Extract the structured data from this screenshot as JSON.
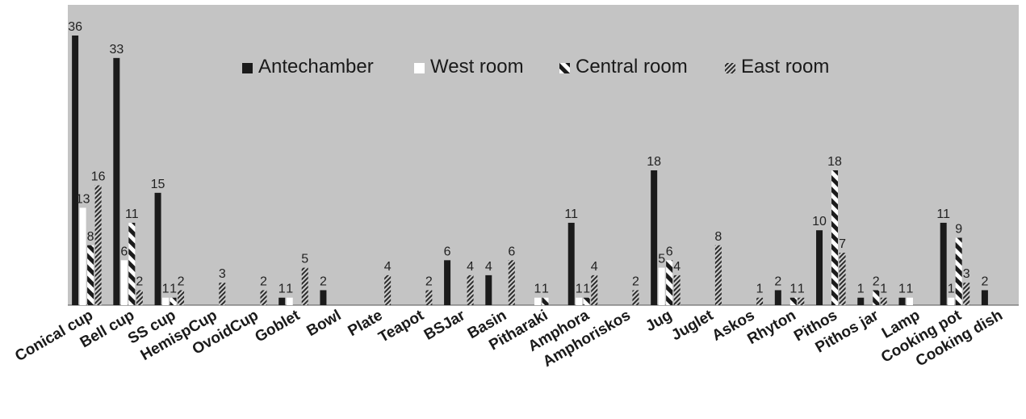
{
  "chart_data": {
    "type": "bar",
    "categories": [
      "Conical cup",
      "Bell cup",
      "SS cup",
      "HemispCup",
      "OvoidCup",
      "Goblet",
      "Bowl",
      "Plate",
      "Teapot",
      "BSJar",
      "Basin",
      "Pitharaki",
      "Amphora",
      "Amphoriskos",
      "Jug",
      "Juglet",
      "Askos",
      "Rhyton",
      "Pithos",
      "Pithos jar",
      "Lamp",
      "Cooking pot",
      "Cooking dish"
    ],
    "series": [
      {
        "name": "Antechamber",
        "values": [
          36,
          33,
          15,
          null,
          null,
          1,
          2,
          null,
          null,
          6,
          4,
          null,
          11,
          null,
          18,
          null,
          null,
          2,
          10,
          1,
          1,
          11,
          2
        ]
      },
      {
        "name": "West room",
        "values": [
          13,
          6,
          1,
          null,
          null,
          1,
          null,
          null,
          null,
          null,
          null,
          1,
          1,
          null,
          5,
          null,
          null,
          null,
          null,
          null,
          1,
          1,
          null
        ]
      },
      {
        "name": "Central room",
        "values": [
          8,
          11,
          1,
          null,
          null,
          null,
          null,
          null,
          null,
          null,
          null,
          1,
          1,
          null,
          6,
          null,
          null,
          1,
          18,
          2,
          null,
          9,
          null
        ]
      },
      {
        "name": "East room",
        "values": [
          16,
          2,
          2,
          3,
          2,
          5,
          null,
          4,
          2,
          4,
          6,
          null,
          4,
          2,
          4,
          8,
          1,
          1,
          7,
          1,
          null,
          3,
          null
        ]
      }
    ],
    "xlabel": "",
    "ylabel": "",
    "ylim": [
      0,
      36
    ],
    "grid": false,
    "legend_position": "top-center",
    "colors": {
      "plot_background": "#c4c4c4",
      "Antechamber": "#1b1b1b",
      "West room": "#ffffff",
      "Central room": "#1b1b1b",
      "East room": "#3a3a3a"
    }
  }
}
